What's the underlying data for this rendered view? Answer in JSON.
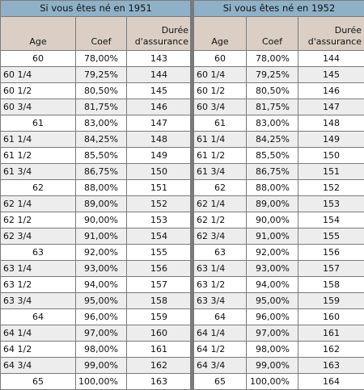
{
  "tables": [
    {
      "title": "Si vous êtes né en 1951",
      "headers": {
        "age": "Age",
        "coef": "Coef",
        "duree_line1": "Durée",
        "duree_line2": "d'assurance"
      },
      "rows": [
        [
          "60",
          "78,00%",
          "143"
        ],
        [
          "60 1/4",
          "79,25%",
          "144"
        ],
        [
          "60 1/2",
          "80,50%",
          "145"
        ],
        [
          "60 3/4",
          "81,75%",
          "146"
        ],
        [
          "61",
          "83,00%",
          "147"
        ],
        [
          "61 1/4",
          "84,25%",
          "148"
        ],
        [
          "61 1/2",
          "85,50%",
          "149"
        ],
        [
          "61 3/4",
          "86,75%",
          "150"
        ],
        [
          "62",
          "88,00%",
          "151"
        ],
        [
          "62 1/4",
          "89,00%",
          "152"
        ],
        [
          "62 1/2",
          "90,00%",
          "153"
        ],
        [
          "62 3/4",
          "91,00%",
          "154"
        ],
        [
          "63",
          "92,00%",
          "155"
        ],
        [
          "63 1/4",
          "93,00%",
          "156"
        ],
        [
          "63 1/2",
          "94,00%",
          "157"
        ],
        [
          "63 3/4",
          "95,00%",
          "158"
        ],
        [
          "64",
          "96,00%",
          "159"
        ],
        [
          "64 1/4",
          "97,00%",
          "160"
        ],
        [
          "64 1/2",
          "98,00%",
          "161"
        ],
        [
          "64 3/4",
          "99,00%",
          "162"
        ],
        [
          "65",
          "100,00%",
          "163"
        ]
      ]
    },
    {
      "title": "Si vous êtes né en 1952",
      "headers": {
        "age": "Age",
        "coef": "Coef",
        "duree_line1": "Durée",
        "duree_line2": "d'assurance"
      },
      "rows": [
        [
          "60",
          "78,00%",
          "144"
        ],
        [
          "60 1/4",
          "79,25%",
          "145"
        ],
        [
          "60 1/2",
          "80,50%",
          "146"
        ],
        [
          "60 3/4",
          "81,75%",
          "147"
        ],
        [
          "61",
          "83,00%",
          "148"
        ],
        [
          "61 1/4",
          "84,25%",
          "149"
        ],
        [
          "61 1/2",
          "85,50%",
          "150"
        ],
        [
          "61 3/4",
          "86,75%",
          "151"
        ],
        [
          "62",
          "88,00%",
          "152"
        ],
        [
          "62 1/4",
          "89,00%",
          "153"
        ],
        [
          "62 1/2",
          "90,00%",
          "154"
        ],
        [
          "62 3/4",
          "91,00%",
          "155"
        ],
        [
          "63",
          "92,00%",
          "156"
        ],
        [
          "63 1/4",
          "93,00%",
          "157"
        ],
        [
          "63 1/2",
          "94,00%",
          "158"
        ],
        [
          "63 3/4",
          "95,00%",
          "159"
        ],
        [
          "64",
          "96,00%",
          "160"
        ],
        [
          "64 1/4",
          "97,00%",
          "161"
        ],
        [
          "64 1/2",
          "98,00%",
          "162"
        ],
        [
          "64 3/4",
          "99,00%",
          "163"
        ],
        [
          "65",
          "100,00%",
          "164"
        ]
      ]
    }
  ],
  "colors": {
    "title_bg": "#8fb1c7",
    "header_bg": "#dbcfc5",
    "alt_row_bg": "#ededed",
    "border": "#7a7a7a"
  }
}
